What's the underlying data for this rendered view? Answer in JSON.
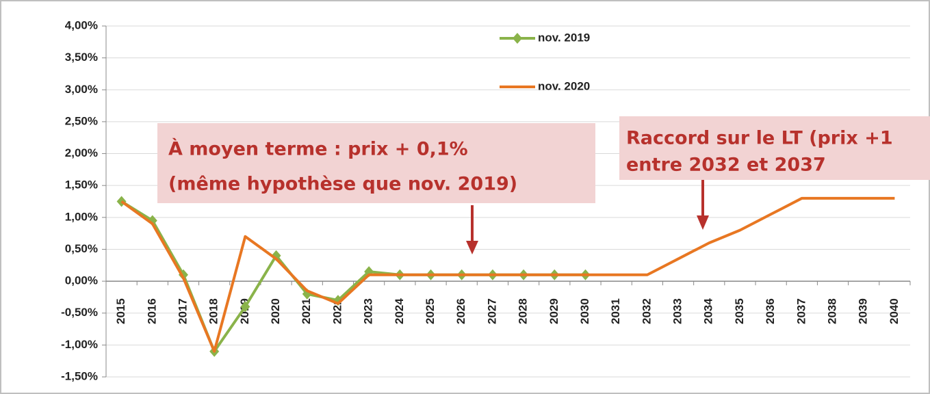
{
  "chart_data": {
    "type": "line",
    "categories": [
      "2015",
      "2016",
      "2017",
      "2018",
      "2019",
      "2020",
      "2021",
      "2022",
      "2023",
      "2024",
      "2025",
      "2026",
      "2027",
      "2028",
      "2029",
      "2030",
      "2031",
      "2032",
      "2033",
      "2034",
      "2035",
      "2036",
      "2037",
      "2038",
      "2039",
      "2040"
    ],
    "series": [
      {
        "name": "nov. 2019",
        "color": "#8ab34a",
        "marker": "diamond",
        "values": [
          1.25,
          0.95,
          0.1,
          -1.1,
          -0.4,
          0.4,
          -0.2,
          -0.3,
          0.15,
          0.1,
          0.1,
          0.1,
          0.1,
          0.1,
          0.1,
          0.1,
          null,
          null,
          null,
          null,
          null,
          null,
          null,
          null,
          null,
          null
        ]
      },
      {
        "name": "nov. 2020",
        "color": "#e87722",
        "values": [
          1.25,
          0.9,
          0.05,
          -1.1,
          0.7,
          0.35,
          -0.15,
          -0.35,
          0.1,
          0.1,
          0.1,
          0.1,
          0.1,
          0.1,
          0.1,
          0.1,
          0.1,
          0.1,
          0.35,
          0.6,
          0.8,
          1.05,
          1.3,
          1.3,
          1.3,
          1.3
        ]
      }
    ],
    "ylim": [
      -1.5,
      4.0
    ],
    "yticks": [
      {
        "value": 4.0,
        "label": "4,00%"
      },
      {
        "value": 3.5,
        "label": "3,50%"
      },
      {
        "value": 3.0,
        "label": "3,00%"
      },
      {
        "value": 2.5,
        "label": "2,50%"
      },
      {
        "value": 2.0,
        "label": "2,00%"
      },
      {
        "value": 1.5,
        "label": "1,50%"
      },
      {
        "value": 1.0,
        "label": "1,00%"
      },
      {
        "value": 0.5,
        "label": "0,50%"
      },
      {
        "value": 0.0,
        "label": "0,00%"
      },
      {
        "value": -0.5,
        "label": "-0,50%"
      },
      {
        "value": -1.0,
        "label": "-1,00%"
      },
      {
        "value": -1.5,
        "label": "-1,50%"
      }
    ],
    "grid": true,
    "annotations": [
      "À moyen terme : prix + 0,1%",
      "(même hypothèse que nov. 2019)",
      "Raccord sur le LT (prix +1",
      "entre 2032 et 2037"
    ]
  }
}
